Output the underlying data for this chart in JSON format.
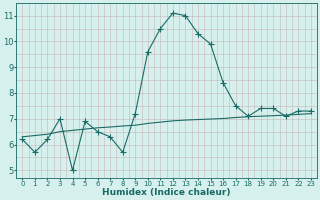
{
  "xlabel": "Humidex (Indice chaleur)",
  "bg_color": "#d6f0ee",
  "line_color": "#1a6b65",
  "grid_color_major": "#c8b8b8",
  "grid_color_minor": "#c8b8b8",
  "x_values": [
    0,
    1,
    2,
    3,
    4,
    5,
    6,
    7,
    8,
    9,
    10,
    11,
    12,
    13,
    14,
    15,
    16,
    17,
    18,
    19,
    20,
    21,
    22,
    23
  ],
  "y_curve": [
    6.2,
    5.7,
    6.2,
    7.0,
    5.0,
    6.9,
    6.5,
    6.3,
    5.7,
    7.2,
    9.6,
    10.5,
    11.1,
    11.0,
    10.3,
    9.9,
    8.4,
    7.5,
    7.1,
    7.4,
    7.4,
    7.1,
    7.3,
    7.3
  ],
  "y_line": [
    6.3,
    6.35,
    6.4,
    6.5,
    6.55,
    6.6,
    6.65,
    6.68,
    6.72,
    6.75,
    6.82,
    6.87,
    6.92,
    6.95,
    6.97,
    6.99,
    7.01,
    7.05,
    7.08,
    7.1,
    7.12,
    7.14,
    7.17,
    7.2
  ],
  "ylim": [
    4.7,
    11.5
  ],
  "xlim": [
    -0.5,
    23.5
  ],
  "yticks": [
    5,
    6,
    7,
    8,
    9,
    10,
    11
  ],
  "xticks": [
    0,
    1,
    2,
    3,
    4,
    5,
    6,
    7,
    8,
    9,
    10,
    11,
    12,
    13,
    14,
    15,
    16,
    17,
    18,
    19,
    20,
    21,
    22,
    23
  ],
  "xlabel_fontsize": 6.5,
  "ytick_fontsize": 6,
  "xtick_fontsize": 5,
  "marker": "+",
  "marker_size": 4,
  "linewidth": 0.8
}
